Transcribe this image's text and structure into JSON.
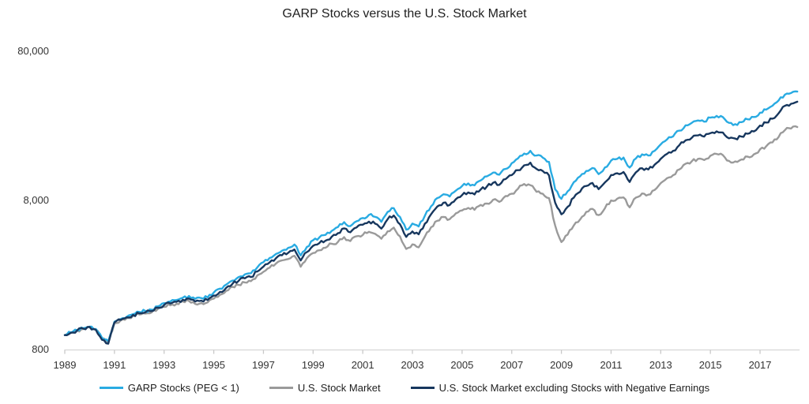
{
  "title": "GARP Stocks versus the U.S. Stock Market",
  "colors": {
    "axis_line": "#D6D6D6",
    "tick": "#C9C9C9",
    "axis_text": "#333333",
    "title_text": "#1F1F1F"
  },
  "chart_data": {
    "type": "line",
    "title": "GARP Stocks versus the U.S. Stock Market",
    "xlabel": "",
    "ylabel": "",
    "y_scale": "log",
    "ylim": [
      800,
      80000
    ],
    "grid": false,
    "legend_position": "bottom",
    "x_start": 1989.0,
    "x_step": 0.25,
    "x_end": 2018.5,
    "x_tick_labels": [
      "1989",
      "1991",
      "1993",
      "1995",
      "1997",
      "1999",
      "2001",
      "2003",
      "2005",
      "2007",
      "2009",
      "2011",
      "2013",
      "2015",
      "2017"
    ],
    "y_ticks": [
      {
        "label": "80,000",
        "value": 80000
      },
      {
        "label": "8,000",
        "value": 8000
      },
      {
        "label": "800",
        "value": 800
      }
    ],
    "series": [
      {
        "id": "garp",
        "name": "GARP Stocks (PEG < 1)",
        "color": "#29ABE2",
        "values": [
          1000,
          1040,
          1080,
          1110,
          1140,
          1100,
          960,
          910,
          1230,
          1280,
          1330,
          1380,
          1430,
          1450,
          1480,
          1560,
          1640,
          1680,
          1720,
          1780,
          1830,
          1750,
          1770,
          1790,
          1930,
          2050,
          2180,
          2320,
          2450,
          2550,
          2600,
          2840,
          3080,
          3290,
          3500,
          3680,
          3850,
          4050,
          3420,
          3900,
          4330,
          4520,
          4700,
          5000,
          5300,
          5720,
          5380,
          5800,
          6100,
          6400,
          6200,
          5750,
          6700,
          7100,
          6200,
          5100,
          5600,
          5350,
          6300,
          7300,
          8300,
          8800,
          8500,
          9300,
          10000,
          10400,
          10100,
          10900,
          11600,
          12300,
          11900,
          13000,
          14200,
          15300,
          16500,
          17200,
          16000,
          15500,
          14500,
          9500,
          8200,
          9200,
          10600,
          11600,
          12600,
          13200,
          12000,
          13300,
          14800,
          15200,
          15500,
          13300,
          15300,
          16300,
          16000,
          17200,
          19000,
          20500,
          21500,
          23500,
          25500,
          26500,
          27500,
          27000,
          28700,
          29500,
          29000,
          26500,
          26000,
          26800,
          28000,
          29000,
          31000,
          32500,
          34500,
          37500,
          41000,
          42000,
          43000
        ]
      },
      {
        "id": "us-market",
        "name": "U.S. Stock Market",
        "color": "#9A9A9A",
        "values": [
          1000,
          1036,
          1072,
          1098,
          1130,
          1090,
          950,
          900,
          1205,
          1252,
          1300,
          1348,
          1375,
          1395,
          1420,
          1500,
          1545,
          1585,
          1620,
          1680,
          1695,
          1620,
          1640,
          1655,
          1755,
          1860,
          1980,
          2110,
          2170,
          2255,
          2300,
          2510,
          2655,
          2835,
          3015,
          3170,
          3235,
          3400,
          2875,
          3280,
          3550,
          3705,
          3850,
          4100,
          4210,
          4540,
          4270,
          4600,
          4690,
          4925,
          4770,
          4425,
          4965,
          5260,
          4590,
          3780,
          4060,
          3875,
          4565,
          5290,
          5845,
          6195,
          5985,
          6550,
          6850,
          7125,
          6920,
          7465,
          7630,
          8090,
          7830,
          8550,
          8875,
          9565,
          10310,
          10120,
          9140,
          8860,
          8290,
          5430,
          4205,
          4720,
          5435,
          5950,
          6700,
          7020,
          6380,
          7075,
          8000,
          8215,
          8380,
          7190,
          8360,
          8905,
          8740,
          9400,
          10440,
          11265,
          11810,
          12910,
          14090,
          14640,
          15195,
          14920,
          15945,
          16390,
          16110,
          14720,
          14610,
          15055,
          15730,
          16290,
          17615,
          18465,
          19600,
          21310,
          23700,
          24280,
          24855
        ]
      },
      {
        "id": "us-market-ex-negative",
        "name": "U.S. Stock Market excluding Stocks with Negative Earnings",
        "color": "#17375E",
        "values": [
          1000,
          1038,
          1075,
          1105,
          1135,
          1085,
          930,
          875,
          1215,
          1265,
          1315,
          1365,
          1400,
          1420,
          1450,
          1525,
          1590,
          1630,
          1670,
          1725,
          1760,
          1680,
          1700,
          1720,
          1840,
          1950,
          2075,
          2205,
          2310,
          2400,
          2450,
          2670,
          2880,
          3075,
          3270,
          3430,
          3565,
          3750,
          3165,
          3600,
          3970,
          4140,
          4300,
          4570,
          4820,
          5200,
          4890,
          5270,
          5500,
          5765,
          5585,
          5180,
          5980,
          6340,
          5535,
          4555,
          4955,
          4735,
          5575,
          6460,
          7280,
          7720,
          7455,
          8160,
          8695,
          9045,
          8780,
          9480,
          9915,
          10515,
          10170,
          11110,
          11835,
          12750,
          13750,
          14335,
          13010,
          12600,
          11790,
          7720,
          6455,
          7245,
          8345,
          9135,
          10000,
          10475,
          9525,
          10555,
          11840,
          12160,
          12400,
          10640,
          12340,
          13145,
          12900,
          13870,
          15200,
          16400,
          17200,
          18800,
          20240,
          21030,
          21825,
          21430,
          22600,
          23230,
          22835,
          20865,
          20800,
          21440,
          22400,
          23200,
          25410,
          26640,
          28280,
          30740,
          34455,
          35595,
          36750
        ]
      }
    ]
  },
  "legend": {
    "items": [
      "GARP Stocks (PEG < 1)",
      "U.S. Stock Market",
      "U.S. Stock Market excluding Stocks with Negative Earnings"
    ]
  }
}
